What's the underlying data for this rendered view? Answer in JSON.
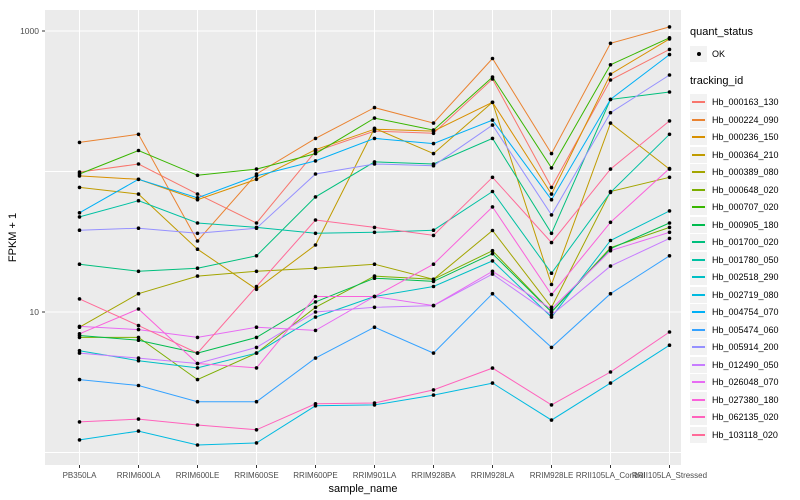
{
  "chart_data": {
    "type": "line",
    "xlabel": "sample_name",
    "ylabel": "FPKM + 1",
    "y_scale": "log10",
    "y_ticks": [
      {
        "value": 10,
        "label": "10"
      },
      {
        "value": 1000,
        "label": "1000"
      }
    ],
    "gridline_values": [
      1,
      10,
      100,
      1000
    ],
    "ylim": [
      0.69,
      1400
    ],
    "grid": "on",
    "legend_position": "right",
    "panel_bg": "#EBEBEB",
    "grid_color": "#FFFFFF",
    "tick_text_color": "#4D4D4D",
    "point_color": "#000000",
    "categories": [
      "PB350LA",
      "RRIM600LA",
      "RRIM600LE",
      "RRIM600SE",
      "RRIM600PE",
      "RRIM901LA",
      "RRIM928BA",
      "RRIM928LA",
      "RRIM928LE",
      "RRII105LA_Control",
      "RRII105LA_Stressed"
    ],
    "series": [
      {
        "name": "Hb_000163_130",
        "color": "#F8766D",
        "values": [
          99,
          113,
          69,
          43,
          139,
          194,
          187,
          455,
          77,
          448,
          740
        ]
      },
      {
        "name": "Hb_000224_090",
        "color": "#EA8331",
        "values": [
          161,
          184,
          32,
          96,
          172,
          285,
          221,
          637,
          134,
          818,
          1069
        ]
      },
      {
        "name": "Hb_000236_150",
        "color": "#D89000",
        "values": [
          93,
          88,
          63,
          88,
          143,
          200,
          194,
          311,
          69,
          493,
          878
        ]
      },
      {
        "name": "Hb_000364_210",
        "color": "#C09B00",
        "values": [
          77,
          69,
          28,
          14.5,
          30,
          203,
          134,
          311,
          15.7,
          221,
          104
        ]
      },
      {
        "name": "Hb_000389_080",
        "color": "#A3A500",
        "values": [
          7.8,
          13.5,
          18,
          19.5,
          20.5,
          21.9,
          17.1,
          38,
          10.8,
          72,
          91
        ]
      },
      {
        "name": "Hb_000648_020",
        "color": "#7CAE00",
        "values": [
          6.6,
          6.6,
          3.3,
          5.1,
          10.8,
          18,
          17.1,
          27.3,
          10,
          28.7,
          40
        ]
      },
      {
        "name": "Hb_000707_020",
        "color": "#39B600",
        "values": [
          96,
          141,
          94,
          104,
          134,
          240,
          197,
          470,
          106,
          575,
          894
        ]
      },
      {
        "name": "Hb_000905_180",
        "color": "#00BB4E",
        "values": [
          6.8,
          6.3,
          5.1,
          6.6,
          11.8,
          17.4,
          16.5,
          26,
          10,
          28.2,
          43
        ]
      },
      {
        "name": "Hb_001700_020",
        "color": "#00BF7D",
        "values": [
          21.9,
          19.5,
          20.5,
          25.1,
          66,
          117,
          113,
          172,
          36.3,
          326,
          368
        ]
      },
      {
        "name": "Hb_001780_050",
        "color": "#00C1A3",
        "values": [
          47.5,
          62,
          43,
          40,
          36.3,
          36.9,
          38.2,
          72,
          18.9,
          71,
          184
        ]
      },
      {
        "name": "Hb_002518_290",
        "color": "#00BFC4",
        "values": [
          5.3,
          4.5,
          4.0,
          5.1,
          9.2,
          12.9,
          15.2,
          23.1,
          9.2,
          32.3,
          52.4
        ]
      },
      {
        "name": "Hb_002719_080",
        "color": "#00BAE0",
        "values": [
          1.23,
          1.42,
          1.13,
          1.17,
          2.15,
          2.18,
          2.56,
          3.12,
          1.7,
          3.12,
          5.8
        ]
      },
      {
        "name": "Hb_004754_070",
        "color": "#00B0F6",
        "values": [
          50.8,
          88,
          65,
          93,
          119,
          172,
          158,
          232,
          63,
          326,
          679
        ]
      },
      {
        "name": "Hb_005474_060",
        "color": "#35A2FF",
        "values": [
          3.3,
          3.0,
          2.3,
          2.3,
          4.7,
          7.8,
          5.1,
          13.5,
          5.6,
          13.5,
          25.1
        ]
      },
      {
        "name": "Hb_005914_200",
        "color": "#9590FF",
        "values": [
          38.2,
          39.5,
          36.3,
          39.5,
          96,
          113,
          110,
          214,
          49.1,
          262,
          486
        ]
      },
      {
        "name": "Hb_012490_050",
        "color": "#C77CFF",
        "values": [
          5.1,
          4.7,
          4.3,
          5.6,
          10,
          10.8,
          11.1,
          18.6,
          9.5,
          21.2,
          33.4
        ]
      },
      {
        "name": "Hb_026048_070",
        "color": "#E76BF3",
        "values": [
          7.9,
          7.5,
          6.6,
          7.8,
          7.4,
          12.9,
          11.1,
          19.5,
          10.5,
          27.3,
          36.9
        ]
      },
      {
        "name": "Hb_027380_180",
        "color": "#FA62DB",
        "values": [
          7.0,
          10.5,
          4.3,
          4.0,
          12.9,
          12.9,
          21.9,
          56,
          13.3,
          43.5,
          105
        ]
      },
      {
        "name": "Hb_062135_020",
        "color": "#FF62BC",
        "values": [
          1.65,
          1.73,
          1.57,
          1.45,
          2.22,
          2.25,
          2.79,
          3.99,
          2.18,
          3.74,
          7.2
        ]
      },
      {
        "name": "Hb_103118_020",
        "color": "#FF6A98",
        "values": [
          12.4,
          8.0,
          5.1,
          15.2,
          45.2,
          40,
          35.1,
          91,
          31.2,
          104,
          229
        ]
      }
    ]
  },
  "legend": {
    "quant_status": {
      "title": "quant_status",
      "items": [
        {
          "label": "OK",
          "marker": "point-black"
        }
      ]
    },
    "tracking_id": {
      "title": "tracking_id"
    }
  }
}
